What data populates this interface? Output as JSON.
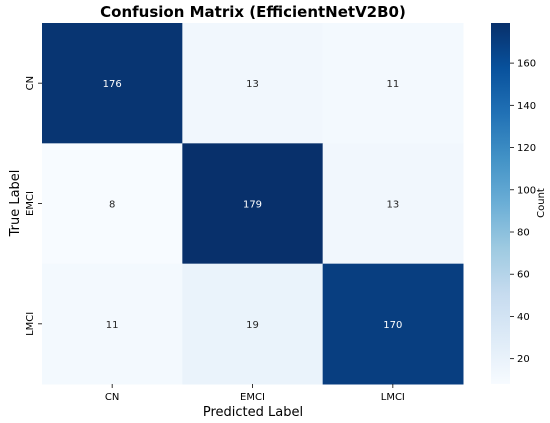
{
  "chart_data": {
    "type": "heatmap",
    "title": "Confusion Matrix (EfficientNetV2B0)",
    "xlabel": "Predicted Label",
    "ylabel": "True Label",
    "x_categories": [
      "CN",
      "EMCI",
      "LMCI"
    ],
    "y_categories": [
      "CN",
      "EMCI",
      "LMCI"
    ],
    "values": [
      [
        176,
        13,
        11
      ],
      [
        8,
        179,
        13
      ],
      [
        11,
        19,
        170
      ]
    ],
    "colormap": "Blues",
    "colorbar": {
      "label": "Count",
      "range": [
        8,
        179
      ],
      "ticks": [
        20,
        40,
        60,
        80,
        100,
        120,
        140,
        160
      ]
    }
  }
}
